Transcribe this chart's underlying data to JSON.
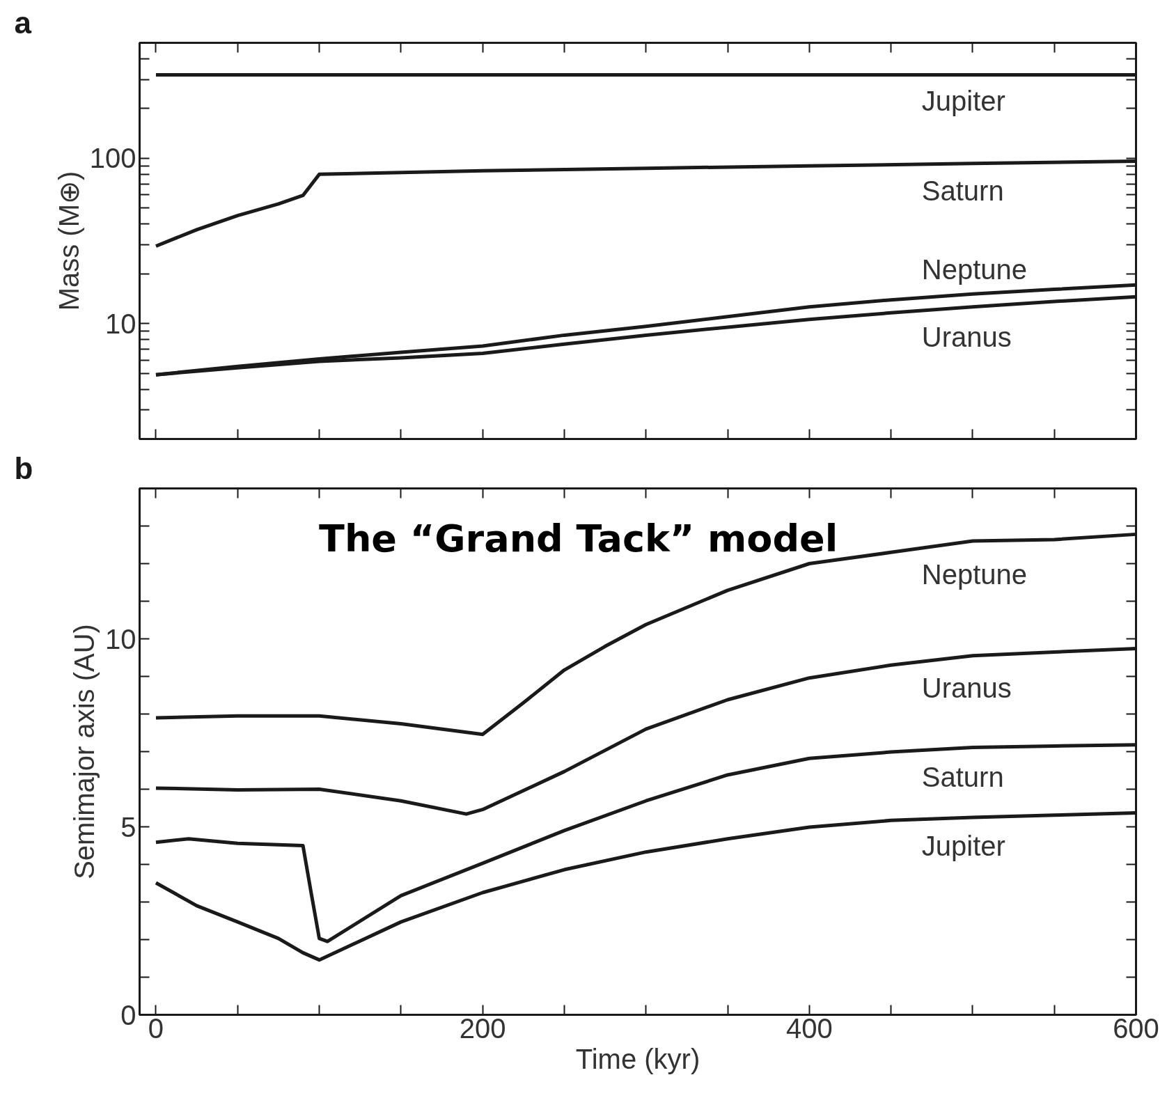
{
  "chart_data": [
    {
      "type": "line",
      "title": "a",
      "ylabel": "Mass (M⊕)",
      "log": "y",
      "grid": false,
      "tick_labels": "y",
      "xlim": [
        -10,
        600
      ],
      "xticks": [
        {
          "value": 0,
          "label": null
        },
        {
          "value": 50,
          "label": null
        },
        {
          "value": 100,
          "label": null
        },
        {
          "value": 150,
          "label": null
        },
        {
          "value": 200,
          "label": null
        },
        {
          "value": 250,
          "label": null
        },
        {
          "value": 300,
          "label": null
        },
        {
          "value": 350,
          "label": null
        },
        {
          "value": 400,
          "label": null
        },
        {
          "value": 450,
          "label": null
        },
        {
          "value": 500,
          "label": null
        },
        {
          "value": 550,
          "label": null
        },
        {
          "value": 600,
          "label": null
        }
      ],
      "ylim": [
        2,
        500
      ],
      "yticks": [
        {
          "value": 2,
          "label": null
        },
        {
          "value": 3,
          "label": null
        },
        {
          "value": 4,
          "label": null
        },
        {
          "value": 5,
          "label": null
        },
        {
          "value": 6,
          "label": null
        },
        {
          "value": 7,
          "label": null
        },
        {
          "value": 8,
          "label": null
        },
        {
          "value": 9,
          "label": null
        },
        10,
        {
          "value": 20,
          "label": null
        },
        {
          "value": 30,
          "label": null
        },
        {
          "value": 40,
          "label": null
        },
        {
          "value": 50,
          "label": null
        },
        {
          "value": 60,
          "label": null
        },
        {
          "value": 70,
          "label": null
        },
        {
          "value": 80,
          "label": null
        },
        {
          "value": 90,
          "label": null
        },
        100,
        {
          "value": 200,
          "label": null
        },
        {
          "value": 300,
          "label": null
        },
        {
          "value": 400,
          "label": null
        }
      ],
      "series": [
        {
          "name": "Jupiter",
          "color": "#1a1a1a",
          "x": [
            0,
            600
          ],
          "values": [
            320,
            320
          ]
        },
        {
          "name": "Saturn",
          "color": "#1a1a1a",
          "x": [
            0,
            25,
            50,
            75,
            90,
            100,
            200,
            300,
            400,
            500,
            600
          ],
          "values": [
            29.4,
            37,
            45,
            53,
            59.6,
            80,
            84,
            87,
            90,
            93,
            96
          ]
        },
        {
          "name": "Neptune",
          "color": "#1a1a1a",
          "x": [
            0,
            50,
            100,
            150,
            200,
            250,
            300,
            350,
            400,
            450,
            500,
            550,
            600
          ],
          "values": [
            4.9,
            5.5,
            6.1,
            6.7,
            7.3,
            8.5,
            9.6,
            11.0,
            12.6,
            13.9,
            15.1,
            16.1,
            17.1
          ]
        },
        {
          "name": "Uranus",
          "color": "#1a1a1a",
          "x": [
            0,
            50,
            100,
            150,
            200,
            250,
            300,
            350,
            400,
            450,
            500,
            550,
            600
          ],
          "values": [
            4.9,
            5.4,
            5.9,
            6.2,
            6.6,
            7.5,
            8.5,
            9.5,
            10.6,
            11.6,
            12.6,
            13.6,
            14.5
          ]
        }
      ]
    },
    {
      "type": "line",
      "title": "b",
      "xlabel": "Time (kyr)",
      "ylabel": "Semimajor axis (AU)",
      "grid": false,
      "annotations": [
        "The “Grand Tack” model"
      ],
      "xlim": [
        -10,
        600
      ],
      "xticks": [
        0,
        {
          "value": 50,
          "label": null
        },
        {
          "value": 100,
          "label": null
        },
        {
          "value": 150,
          "label": null
        },
        200,
        {
          "value": 250,
          "label": null
        },
        {
          "value": 300,
          "label": null
        },
        {
          "value": 350,
          "label": null
        },
        400,
        {
          "value": 450,
          "label": null
        },
        {
          "value": 500,
          "label": null
        },
        {
          "value": 550,
          "label": null
        },
        600
      ],
      "ylim": [
        0,
        14
      ],
      "yticks": [
        0,
        {
          "value": 1,
          "label": null
        },
        {
          "value": 2,
          "label": null
        },
        {
          "value": 3,
          "label": null
        },
        {
          "value": 4,
          "label": null
        },
        5,
        {
          "value": 6,
          "label": null
        },
        {
          "value": 7,
          "label": null
        },
        {
          "value": 8,
          "label": null
        },
        {
          "value": 9,
          "label": null
        },
        10,
        {
          "value": 11,
          "label": null
        },
        {
          "value": 12,
          "label": null
        },
        {
          "value": 13,
          "label": null
        },
        {
          "value": 14,
          "label": null
        }
      ],
      "series": [
        {
          "name": "Neptune",
          "color": "#1a1a1a",
          "x": [
            0,
            50,
            100,
            150,
            200,
            225,
            250,
            275,
            300,
            350,
            400,
            450,
            500,
            550,
            600
          ],
          "values": [
            7.9,
            7.95,
            7.95,
            7.74,
            7.46,
            8.3,
            9.17,
            9.8,
            10.38,
            11.29,
            12.0,
            12.3,
            12.6,
            12.64,
            12.78
          ]
        },
        {
          "name": "Uranus",
          "color": "#1a1a1a",
          "x": [
            0,
            50,
            100,
            150,
            190,
            200,
            250,
            300,
            350,
            400,
            450,
            500,
            550,
            600
          ],
          "values": [
            6.03,
            5.98,
            6.0,
            5.69,
            5.34,
            5.46,
            6.47,
            7.6,
            8.38,
            8.96,
            9.3,
            9.55,
            9.65,
            9.74
          ]
        },
        {
          "name": "Saturn",
          "color": "#1a1a1a",
          "x": [
            0,
            20,
            50,
            90,
            95,
            100,
            105,
            150,
            200,
            250,
            300,
            350,
            400,
            450,
            500,
            550,
            600
          ],
          "values": [
            4.59,
            4.68,
            4.56,
            4.5,
            3.25,
            2.03,
            1.95,
            3.17,
            4.03,
            4.9,
            5.69,
            6.38,
            6.82,
            6.99,
            7.11,
            7.15,
            7.18
          ]
        },
        {
          "name": "Jupiter",
          "color": "#1a1a1a",
          "x": [
            0,
            25,
            50,
            75,
            90,
            100,
            150,
            200,
            250,
            300,
            350,
            400,
            450,
            500,
            550,
            600
          ],
          "values": [
            3.51,
            2.9,
            2.47,
            2.03,
            1.65,
            1.46,
            2.47,
            3.25,
            3.86,
            4.33,
            4.68,
            4.99,
            5.17,
            5.25,
            5.31,
            5.37
          ]
        }
      ]
    }
  ]
}
